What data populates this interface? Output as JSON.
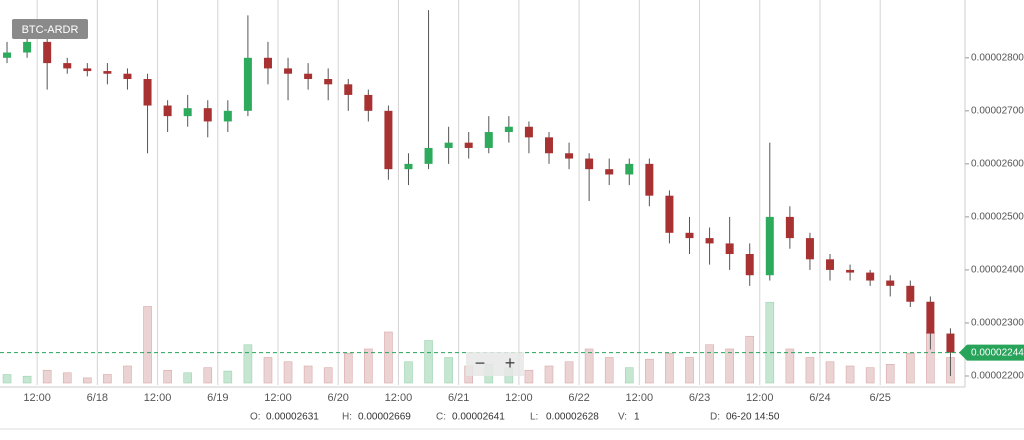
{
  "chart_data": {
    "type": "candlestick",
    "title": "BTC-ARDR",
    "x": [
      6,
      10,
      14,
      18,
      22,
      26,
      30,
      34,
      38,
      42,
      46,
      50,
      54,
      58,
      62,
      66,
      70,
      74,
      78,
      82,
      86,
      90,
      94,
      98,
      102,
      106,
      110,
      114,
      118,
      122,
      126,
      130,
      134,
      138,
      142,
      146,
      150,
      154,
      158,
      162,
      166,
      170,
      174,
      178,
      182,
      186,
      190,
      194
    ],
    "open": [
      2.8e-05,
      2.81e-05,
      2.83e-05,
      2.79e-05,
      2.78e-05,
      2.775e-05,
      2.77e-05,
      2.76e-05,
      2.71e-05,
      2.69e-05,
      2.705e-05,
      2.68e-05,
      2.7e-05,
      2.8e-05,
      2.78e-05,
      2.77e-05,
      2.76e-05,
      2.75e-05,
      2.73e-05,
      2.7e-05,
      2.59e-05,
      2.6e-05,
      2.63e-05,
      2.64e-05,
      2.63e-05,
      2.66e-05,
      2.67e-05,
      2.65e-05,
      2.62e-05,
      2.61e-05,
      2.59e-05,
      2.58e-05,
      2.6e-05,
      2.54e-05,
      2.47e-05,
      2.46e-05,
      2.45e-05,
      2.43e-05,
      2.39e-05,
      2.5e-05,
      2.46e-05,
      2.42e-05,
      2.4e-05,
      2.395e-05,
      2.38e-05,
      2.37e-05,
      2.34e-05,
      2.28e-05
    ],
    "high": [
      2.83e-05,
      2.85e-05,
      2.84e-05,
      2.8e-05,
      2.79e-05,
      2.79e-05,
      2.78e-05,
      2.77e-05,
      2.72e-05,
      2.73e-05,
      2.72e-05,
      2.72e-05,
      2.88e-05,
      2.83e-05,
      2.8e-05,
      2.79e-05,
      2.78e-05,
      2.76e-05,
      2.74e-05,
      2.71e-05,
      2.62e-05,
      2.89e-05,
      2.67e-05,
      2.66e-05,
      2.69e-05,
      2.69e-05,
      2.68e-05,
      2.66e-05,
      2.64e-05,
      2.62e-05,
      2.61e-05,
      2.61e-05,
      2.61e-05,
      2.55e-05,
      2.5e-05,
      2.48e-05,
      2.5e-05,
      2.45e-05,
      2.64e-05,
      2.52e-05,
      2.47e-05,
      2.43e-05,
      2.41e-05,
      2.4e-05,
      2.39e-05,
      2.38e-05,
      2.35e-05,
      2.29e-05
    ],
    "low": [
      2.79e-05,
      2.8e-05,
      2.74e-05,
      2.77e-05,
      2.765e-05,
      2.75e-05,
      2.74e-05,
      2.62e-05,
      2.66e-05,
      2.67e-05,
      2.65e-05,
      2.66e-05,
      2.69e-05,
      2.75e-05,
      2.72e-05,
      2.74e-05,
      2.72e-05,
      2.7e-05,
      2.68e-05,
      2.57e-05,
      2.56e-05,
      2.59e-05,
      2.6e-05,
      2.61e-05,
      2.62e-05,
      2.64e-05,
      2.62e-05,
      2.6e-05,
      2.59e-05,
      2.53e-05,
      2.56e-05,
      2.56e-05,
      2.52e-05,
      2.45e-05,
      2.43e-05,
      2.41e-05,
      2.4e-05,
      2.37e-05,
      2.38e-05,
      2.44e-05,
      2.4e-05,
      2.38e-05,
      2.38e-05,
      2.37e-05,
      2.35e-05,
      2.33e-05,
      2.25e-05,
      2.2e-05
    ],
    "close": [
      2.81e-05,
      2.83e-05,
      2.79e-05,
      2.78e-05,
      2.775e-05,
      2.77e-05,
      2.76e-05,
      2.71e-05,
      2.69e-05,
      2.705e-05,
      2.68e-05,
      2.7e-05,
      2.8e-05,
      2.78e-05,
      2.77e-05,
      2.76e-05,
      2.75e-05,
      2.73e-05,
      2.7e-05,
      2.59e-05,
      2.6e-05,
      2.63e-05,
      2.64e-05,
      2.63e-05,
      2.66e-05,
      2.67e-05,
      2.65e-05,
      2.62e-05,
      2.61e-05,
      2.59e-05,
      2.58e-05,
      2.6e-05,
      2.54e-05,
      2.47e-05,
      2.46e-05,
      2.45e-05,
      2.43e-05,
      2.39e-05,
      2.5e-05,
      2.46e-05,
      2.42e-05,
      2.4e-05,
      2.395e-05,
      2.38e-05,
      2.37e-05,
      2.34e-05,
      2.28e-05,
      2.244e-05
    ],
    "volume": [
      10,
      8,
      15,
      12,
      6,
      10,
      20,
      90,
      15,
      12,
      18,
      14,
      45,
      30,
      25,
      20,
      18,
      35,
      40,
      60,
      25,
      50,
      30,
      20,
      22,
      18,
      15,
      20,
      25,
      40,
      30,
      18,
      28,
      35,
      30,
      45,
      40,
      55,
      95,
      40,
      30,
      25,
      20,
      18,
      22,
      35,
      60,
      30
    ],
    "up_color": "#2eaa5c",
    "down_color": "#a83232",
    "up_volume_color": "#c5e6d1",
    "down_volume_color": "#ecd3d3",
    "xlim": [
      4.6,
      196.9
    ],
    "xticks": [
      {
        "value": 12,
        "label": "12:00"
      },
      {
        "value": 24,
        "label": "6/18"
      },
      {
        "value": 36,
        "label": "12:00"
      },
      {
        "value": 48,
        "label": "6/19"
      },
      {
        "value": 60,
        "label": "12:00"
      },
      {
        "value": 72,
        "label": "6/20"
      },
      {
        "value": 84,
        "label": "12:00"
      },
      {
        "value": 96,
        "label": "6/21"
      },
      {
        "value": 108,
        "label": "12:00"
      },
      {
        "value": 120,
        "label": "6/22"
      },
      {
        "value": 132,
        "label": "12:00"
      },
      {
        "value": 144,
        "label": "6/23"
      },
      {
        "value": 156,
        "label": "12:00"
      },
      {
        "value": 168,
        "label": "6/24"
      },
      {
        "value": 180,
        "label": "6/25"
      }
    ],
    "ylim": [
      2.183e-05,
      2.909e-05
    ],
    "yticks": [
      {
        "value": 2.2e-05,
        "label": "0.00002200"
      },
      {
        "value": 2.3e-05,
        "label": "0.00002300"
      },
      {
        "value": 2.4e-05,
        "label": "0.00002400"
      },
      {
        "value": 2.5e-05,
        "label": "0.00002500"
      },
      {
        "value": 2.6e-05,
        "label": "0.00002600"
      },
      {
        "value": 2.7e-05,
        "label": "0.00002700"
      },
      {
        "value": 2.8e-05,
        "label": "0.00002800"
      }
    ],
    "y2lim": [
      0,
      100
    ],
    "last_price": {
      "value": 2.244e-05,
      "label": "0.00002244"
    },
    "last_price_color": "#27a35a",
    "grid": true,
    "zoom_out": "−",
    "zoom_in": "+",
    "info": [
      {
        "label": "O:",
        "value": "0.00002631"
      },
      {
        "label": "H:",
        "value": "0.00002669"
      },
      {
        "label": "C:",
        "value": "0.00002641"
      },
      {
        "label": "L:",
        "value": "0.00002628"
      },
      {
        "label": "V:",
        "value": "1"
      },
      {
        "label": "D:",
        "value": "06-20 14:50"
      }
    ]
  }
}
